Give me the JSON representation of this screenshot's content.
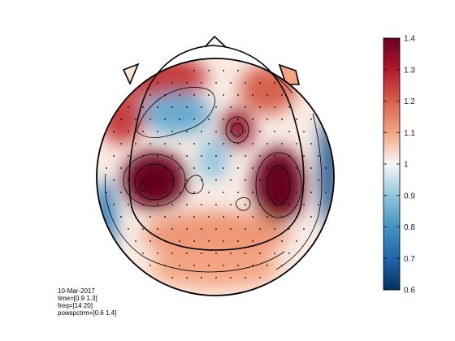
{
  "chart_data": {
    "type": "heatmap",
    "subtype": "EEG topographic scalp map",
    "colormap": "diverging red-white-blue",
    "colors": {
      "high": "#67001f",
      "mid": "#f7f7f7",
      "low": "#053061"
    },
    "clim": [
      0.6,
      1.4
    ],
    "colorbar_ticks": [
      "1.4",
      "1.3",
      "1.2",
      "1.1",
      "1",
      "0.9",
      "0.8",
      "0.7",
      "0.6"
    ],
    "colorbar_tick_values": [
      1.4,
      1.3,
      1.2,
      1.1,
      1.0,
      0.9,
      0.8,
      0.7,
      0.6
    ],
    "colorbar_position": "right",
    "contour_lines": true,
    "electrode_markers": true,
    "regions": [
      {
        "region": "left centro-parietal",
        "value": 1.4
      },
      {
        "region": "right fronto-central",
        "value": 1.35
      },
      {
        "region": "right temporo-parietal",
        "value": 1.4
      },
      {
        "region": "left frontal",
        "value": 1.25
      },
      {
        "region": "left fronto-central",
        "value": 0.85
      },
      {
        "region": "central",
        "value": 0.9
      },
      {
        "region": "right lateral edge",
        "value": 0.65
      },
      {
        "region": "left lateral edge",
        "value": 0.75
      },
      {
        "region": "occipital",
        "value": 1.1
      }
    ]
  },
  "info": {
    "date": "10-Mar-2017",
    "time": "time=[0.9 1.3]",
    "freq": "freq=[14 20]",
    "param": "powspctrm=[0.6 1.4]"
  }
}
